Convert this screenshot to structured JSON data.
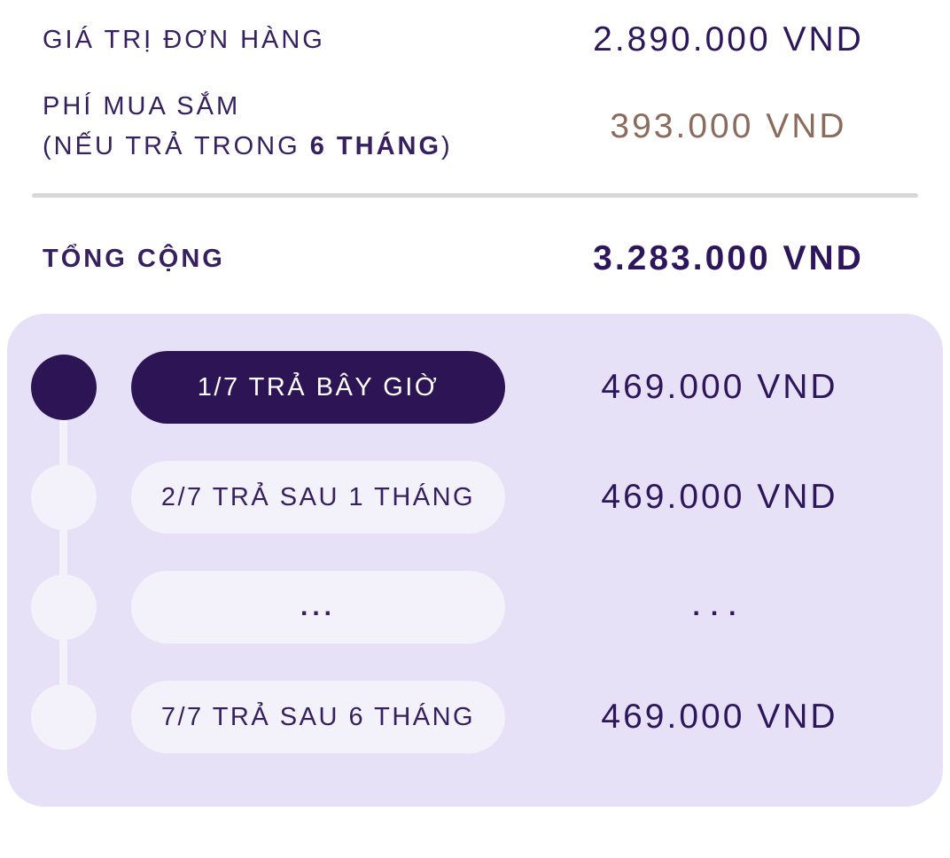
{
  "summary": {
    "order": {
      "label": "GIÁ TRỊ ĐƠN HÀNG",
      "value": "2.890.000 VND"
    },
    "fee": {
      "label_line1": "PHÍ MUA SẮM",
      "label_line2_prefix": "(NẾU TRẢ TRONG ",
      "label_line2_bold": "6 THÁNG",
      "label_line2_suffix": ")",
      "value": "393.000 VND"
    },
    "total": {
      "label": "TỔNG CỘNG",
      "value": "3.283.000 VND"
    }
  },
  "schedule": {
    "items": [
      {
        "label": "1/7 TRẢ BÂY GIỜ",
        "value": "469.000 VND",
        "state": "current"
      },
      {
        "label": "2/7 TRẢ SAU 1 THÁNG",
        "value": "469.000 VND",
        "state": "upcoming"
      },
      {
        "label": "...",
        "value": "...",
        "state": "upcoming"
      },
      {
        "label": "7/7 TRẢ SAU 6 THÁNG",
        "value": "469.000 VND",
        "state": "upcoming"
      }
    ]
  },
  "colors": {
    "label_purple": "#36205f",
    "price_purple": "#2e165c",
    "accent_dark": "#2d1455",
    "panel_bg": "#e7e1f8",
    "chip_light": "#f3f1f9",
    "fee_brown": "#8b6b5c",
    "divider_gray": "#d8d8d8"
  }
}
